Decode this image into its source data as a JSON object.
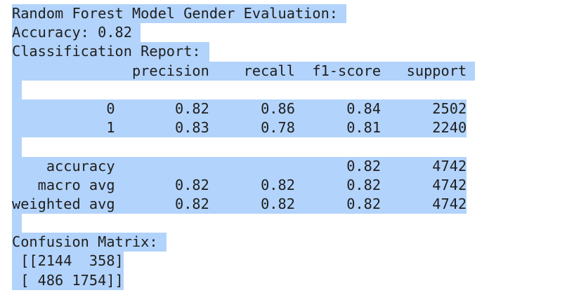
{
  "output": {
    "lines": [
      "Random Forest Model Gender Evaluation: ",
      "Accuracy: 0.82 ",
      "Classification Report: ",
      "              precision    recall  f1-score   support ",
      "",
      "           0       0.82      0.86      0.84      2502",
      "           1       0.83      0.78      0.81      2240",
      "",
      "    accuracy                           0.82      4742",
      "   macro avg       0.82      0.82      0.82      4742",
      "weighted avg       0.82      0.82      0.82      4742",
      "",
      "Confusion Matrix: ",
      " [[2144  358]",
      " [ 486 1754]]"
    ]
  },
  "selection_color": "#b2d3fb",
  "text_color": "#1f1f1f"
}
